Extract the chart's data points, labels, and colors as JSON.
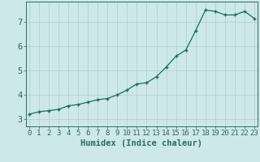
{
  "title": "",
  "xlabel": "Humidex (Indice chaleur)",
  "ylabel": "",
  "x": [
    0,
    1,
    2,
    3,
    4,
    5,
    6,
    7,
    8,
    9,
    10,
    11,
    12,
    13,
    14,
    15,
    16,
    17,
    18,
    19,
    20,
    21,
    22,
    23
  ],
  "y": [
    3.2,
    3.3,
    3.35,
    3.4,
    3.55,
    3.6,
    3.7,
    3.8,
    3.85,
    4.0,
    4.2,
    4.45,
    4.5,
    4.75,
    5.15,
    5.6,
    5.85,
    6.65,
    7.5,
    7.45,
    7.3,
    7.3,
    7.45,
    7.15
  ],
  "line_color": "#1a6b5e",
  "marker": "+",
  "marker_size": 3,
  "bg_color": "#cde8e8",
  "grid_color": "#b0cccc",
  "axis_color": "#336666",
  "tick_label_fontsize": 6.5,
  "xlabel_fontsize": 7.5,
  "ylim": [
    2.7,
    7.85
  ],
  "xlim": [
    -0.3,
    23.3
  ],
  "yticks": [
    3,
    4,
    5,
    6,
    7
  ],
  "xticks": [
    0,
    1,
    2,
    3,
    4,
    5,
    6,
    7,
    8,
    9,
    10,
    11,
    12,
    13,
    14,
    15,
    16,
    17,
    18,
    19,
    20,
    21,
    22,
    23
  ]
}
